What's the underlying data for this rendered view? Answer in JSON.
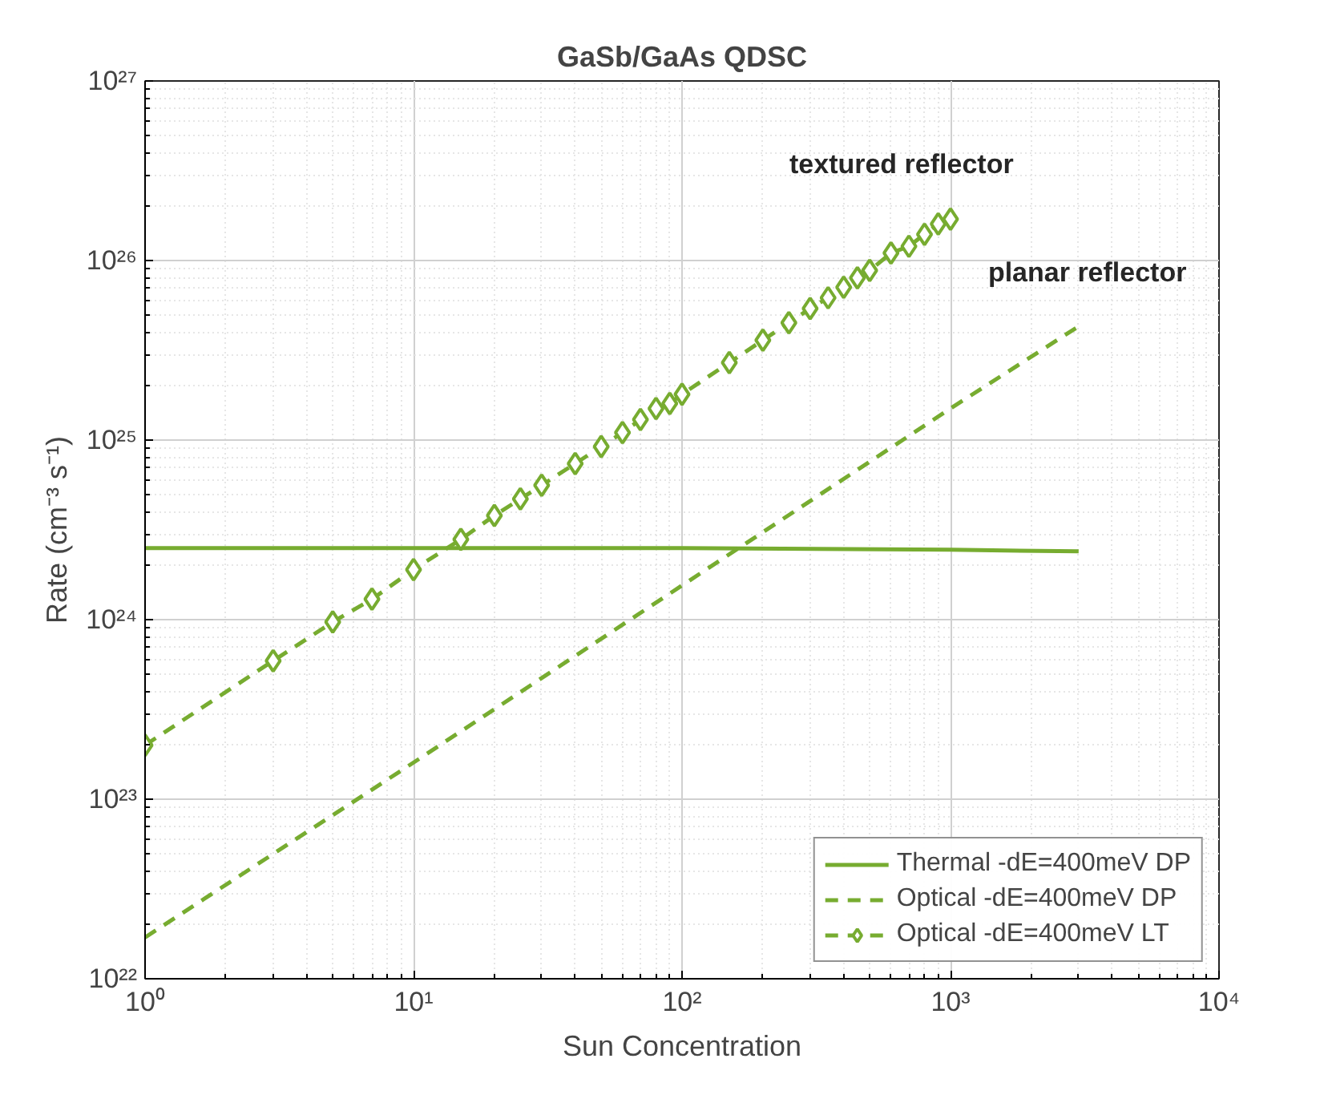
{
  "chart_data": {
    "type": "line",
    "title": "GaSb/GaAs QDSC",
    "xlabel": "Sun Concentration",
    "ylabel": "Rate (cm⁻³ s⁻¹)",
    "log": "xy",
    "grid": true,
    "legend": "bottom right",
    "xlim": [
      1,
      10000
    ],
    "ylim": [
      1e+22,
      1e+27
    ],
    "xticks": [
      {
        "value": 1,
        "label": "10⁰"
      },
      {
        "value": 10,
        "label": "10¹"
      },
      {
        "value": 100,
        "label": "10²"
      },
      {
        "value": 1000,
        "label": "10³"
      },
      {
        "value": 10000,
        "label": "10⁴"
      }
    ],
    "yticks": [
      {
        "value": 1e+22,
        "label": "10²²"
      },
      {
        "value": 1e+23,
        "label": "10²³"
      },
      {
        "value": 1e+24,
        "label": "10²⁴"
      },
      {
        "value": 1e+25,
        "label": "10²⁵"
      },
      {
        "value": 1e+26,
        "label": "10²⁶"
      },
      {
        "value": 1e+27,
        "label": "10²⁷"
      }
    ],
    "annotations": [
      "textured reflector",
      "planar reflector"
    ],
    "series": [
      {
        "name": "Thermal -dE=400meV DP",
        "color": "#77ac30",
        "line_style": "solid",
        "marker": "none",
        "x": [
          1,
          100,
          1000,
          3000
        ],
        "values": [
          2.5e+24,
          2.5e+24,
          2.45e+24,
          2.4e+24
        ]
      },
      {
        "name": "Optical -dE=400meV DP",
        "color": "#77ac30",
        "line_style": "dashed",
        "marker": "none",
        "x": [
          1,
          10,
          100,
          1000,
          3000
        ],
        "values": [
          1.7e+22,
          1.6e+23,
          1.55e+24,
          1.5e+25,
          4.3e+25
        ]
      },
      {
        "name": "Optical -dE=400meV LT",
        "color": "#77ac30",
        "line_style": "dashed",
        "marker": "diamond",
        "x": [
          1,
          3,
          5,
          7,
          10,
          15,
          20,
          25,
          30,
          40,
          50,
          60,
          70,
          80,
          90,
          100,
          150,
          200,
          250,
          300,
          350,
          400,
          450,
          500,
          600,
          700,
          800,
          900,
          1000
        ],
        "values": [
          2e+23,
          5.9e+23,
          9.7e+23,
          1.3e+24,
          1.9e+24,
          2.8e+24,
          3.8e+24,
          4.7e+24,
          5.6e+24,
          7.4e+24,
          9.2e+24,
          1.1e+25,
          1.3e+25,
          1.5e+25,
          1.6e+25,
          1.8e+25,
          2.7e+25,
          3.6e+25,
          4.5e+25,
          5.4e+25,
          6.2e+25,
          7.1e+25,
          8e+25,
          8.8e+25,
          1.1e+26,
          1.2e+26,
          1.4e+26,
          1.6e+26,
          1.7e+26
        ]
      }
    ]
  }
}
